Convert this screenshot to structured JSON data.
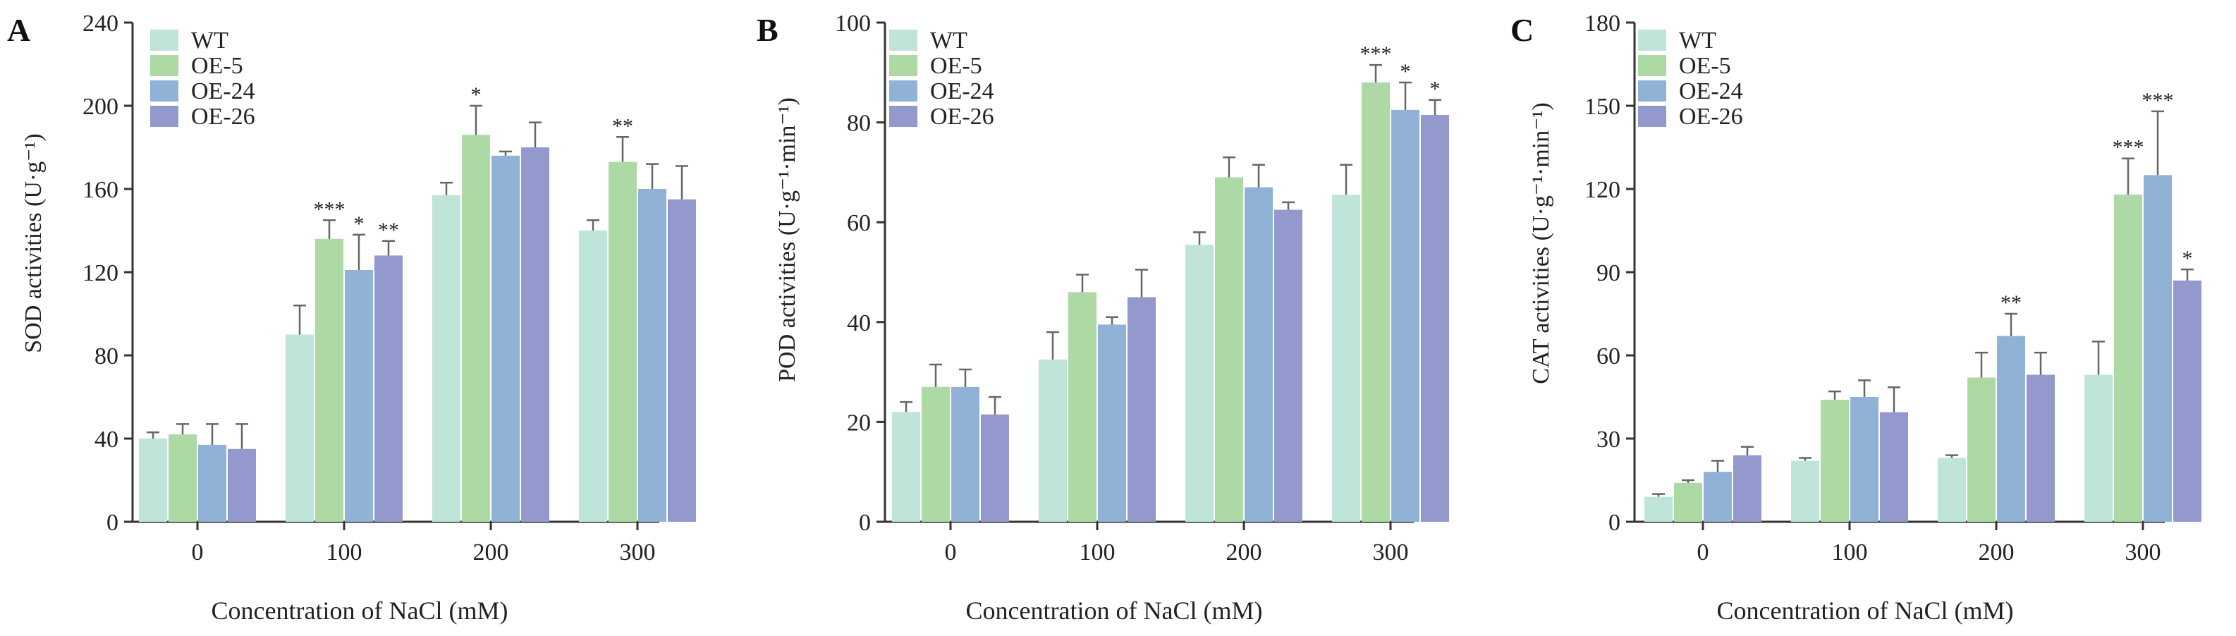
{
  "figure": {
    "xlabel": "Concentration of NaCl (mM)"
  },
  "colors": {
    "WT": "#bfe4d9",
    "OE-5": "#acd9a4",
    "OE-24": "#90b2d6",
    "OE-26": "#9399cd",
    "axis": "#333333",
    "error": "#666666"
  },
  "chart_data": [
    {
      "panel": "A",
      "type": "bar",
      "ylabel": "SOD activities (U·g⁻¹)",
      "xlabel": "Concentration of NaCl (mM)",
      "ylim": [
        0,
        240
      ],
      "yticks": [
        0,
        40,
        80,
        120,
        160,
        200,
        240
      ],
      "categories": [
        "0",
        "100",
        "200",
        "300"
      ],
      "legend_position": "top-left",
      "series": [
        {
          "name": "WT",
          "values": [
            40,
            90,
            157,
            140
          ],
          "errors": [
            3,
            14,
            6,
            5
          ],
          "sig": [
            "",
            "",
            "",
            ""
          ]
        },
        {
          "name": "OE-5",
          "values": [
            42,
            136,
            186,
            173
          ],
          "errors": [
            5,
            9,
            14,
            12
          ],
          "sig": [
            "",
            "***",
            "*",
            "**"
          ]
        },
        {
          "name": "OE-24",
          "values": [
            37,
            121,
            176,
            160
          ],
          "errors": [
            10,
            17,
            2,
            12
          ],
          "sig": [
            "",
            "*",
            "",
            ""
          ]
        },
        {
          "name": "OE-26",
          "values": [
            35,
            128,
            180,
            155
          ],
          "errors": [
            12,
            7,
            12,
            16
          ],
          "sig": [
            "",
            "**",
            "",
            ""
          ]
        }
      ]
    },
    {
      "panel": "B",
      "type": "bar",
      "ylabel": "POD activities (U·g⁻¹·min⁻¹)",
      "xlabel": "Concentration of NaCl (mM)",
      "ylim": [
        0,
        100
      ],
      "yticks": [
        0,
        20,
        40,
        60,
        80,
        100
      ],
      "categories": [
        "0",
        "100",
        "200",
        "300"
      ],
      "legend_position": "top-left",
      "series": [
        {
          "name": "WT",
          "values": [
            22,
            32.5,
            55.5,
            65.5
          ],
          "errors": [
            2,
            5.5,
            2.5,
            6
          ],
          "sig": [
            "",
            "",
            "",
            ""
          ]
        },
        {
          "name": "OE-5",
          "values": [
            27,
            46,
            69,
            88
          ],
          "errors": [
            4.5,
            3.5,
            4,
            3.5
          ],
          "sig": [
            "",
            "",
            "",
            "***"
          ]
        },
        {
          "name": "OE-24",
          "values": [
            27,
            39.5,
            67,
            82.5
          ],
          "errors": [
            3.5,
            1.5,
            4.5,
            5.5
          ],
          "sig": [
            "",
            "",
            "",
            "*"
          ]
        },
        {
          "name": "OE-26",
          "values": [
            21.5,
            45,
            62.5,
            81.5
          ],
          "errors": [
            3.5,
            5.5,
            1.5,
            3
          ],
          "sig": [
            "",
            "",
            "",
            "*"
          ]
        }
      ]
    },
    {
      "panel": "C",
      "type": "bar",
      "ylabel": "CAT activities (U·g⁻¹·min⁻¹)",
      "xlabel": "Concentration of NaCl (mM)",
      "ylim": [
        0,
        180
      ],
      "yticks": [
        0,
        30,
        60,
        90,
        120,
        150,
        180
      ],
      "categories": [
        "0",
        "100",
        "200",
        "300"
      ],
      "legend_position": "top-left",
      "series": [
        {
          "name": "WT",
          "values": [
            9,
            22,
            23,
            53
          ],
          "errors": [
            1,
            1,
            1,
            12
          ],
          "sig": [
            "",
            "",
            "",
            ""
          ]
        },
        {
          "name": "OE-5",
          "values": [
            14,
            44,
            52,
            118
          ],
          "errors": [
            1,
            3,
            9,
            13
          ],
          "sig": [
            "",
            "",
            "",
            "***"
          ]
        },
        {
          "name": "OE-24",
          "values": [
            18,
            45,
            67,
            125
          ],
          "errors": [
            4,
            6,
            8,
            23
          ],
          "sig": [
            "",
            "",
            "**",
            "***"
          ]
        },
        {
          "name": "OE-26",
          "values": [
            24,
            39.5,
            53,
            87
          ],
          "errors": [
            3,
            9,
            8,
            4
          ],
          "sig": [
            "",
            "",
            "",
            "*"
          ]
        }
      ]
    }
  ]
}
